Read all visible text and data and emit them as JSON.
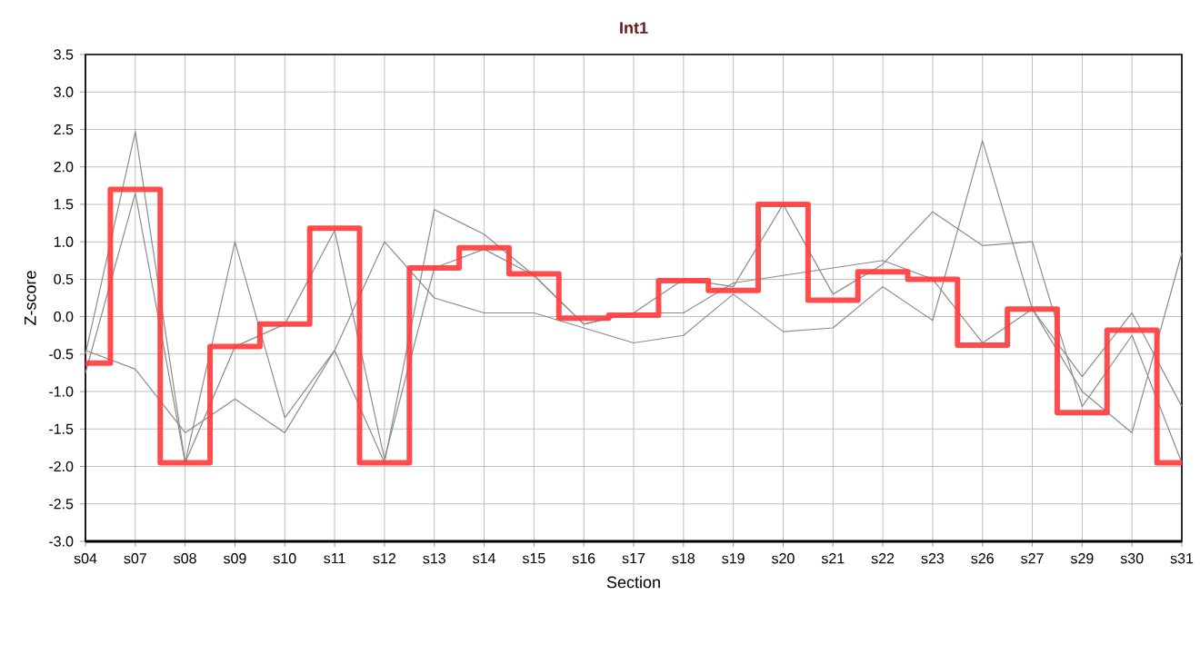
{
  "chart_data": {
    "type": "line",
    "title": "Int1",
    "xlabel": "Section",
    "ylabel": "Z-score",
    "categories": [
      "s04",
      "s07",
      "s08",
      "s09",
      "s10",
      "s11",
      "s12",
      "s13",
      "s14",
      "s15",
      "s16",
      "s17",
      "s18",
      "s19",
      "s20",
      "s21",
      "s22",
      "s23",
      "s26",
      "s27",
      "s29",
      "s30",
      "s31"
    ],
    "series": [
      {
        "color": "#8c8c8c",
        "values": [
          -0.5,
          2.47,
          -1.95,
          1.0,
          -1.35,
          -0.45,
          -1.95,
          1.43,
          1.1,
          0.55,
          -0.1,
          0.05,
          0.5,
          0.4,
          1.5,
          0.3,
          0.7,
          1.4,
          0.95,
          1.0,
          -1.2,
          -0.25,
          -1.95
        ]
      },
      {
        "color": "#8c8c8c",
        "values": [
          -0.45,
          -0.7,
          -1.55,
          -1.1,
          -1.55,
          -0.45,
          1.0,
          0.25,
          0.05,
          0.05,
          -0.15,
          -0.35,
          -0.25,
          0.3,
          -0.2,
          -0.15,
          0.4,
          -0.05,
          2.35,
          0.1,
          -1.0,
          -1.55,
          0.85
        ]
      },
      {
        "color": "#8c8c8c",
        "values": [
          -0.75,
          1.65,
          -1.95,
          -0.4,
          -0.1,
          1.15,
          -1.9,
          0.65,
          0.9,
          0.55,
          -0.1,
          0.05,
          0.05,
          0.45,
          0.55,
          0.65,
          0.75,
          0.5,
          -0.35,
          0.1,
          -0.8,
          0.05,
          -1.2
        ]
      },
      {
        "type": "step",
        "color": "#ff3838",
        "values": [
          -0.62,
          1.7,
          -1.95,
          -0.4,
          -0.1,
          1.18,
          -1.95,
          0.65,
          0.92,
          0.57,
          -0.02,
          0.02,
          0.48,
          0.35,
          1.5,
          0.22,
          0.6,
          0.5,
          -0.38,
          0.1,
          -1.28,
          -0.18,
          -1.95
        ]
      }
    ],
    "ylim": [
      -3,
      3.5
    ],
    "yticks": [
      {
        "value": -3,
        "label": "-3.0"
      },
      -2.5,
      {
        "value": -2,
        "label": "-2.0"
      },
      -1.5,
      {
        "value": -1,
        "label": "-1.0"
      },
      -0.5,
      {
        "value": 0,
        "label": "0.0"
      },
      0.5,
      {
        "value": 1,
        "label": "1.0"
      },
      1.5,
      {
        "value": 2,
        "label": "2.0"
      },
      2.5,
      {
        "value": 3,
        "label": "3.0"
      },
      3.5
    ],
    "grid": true,
    "marker": "none",
    "line_style": "solid"
  }
}
